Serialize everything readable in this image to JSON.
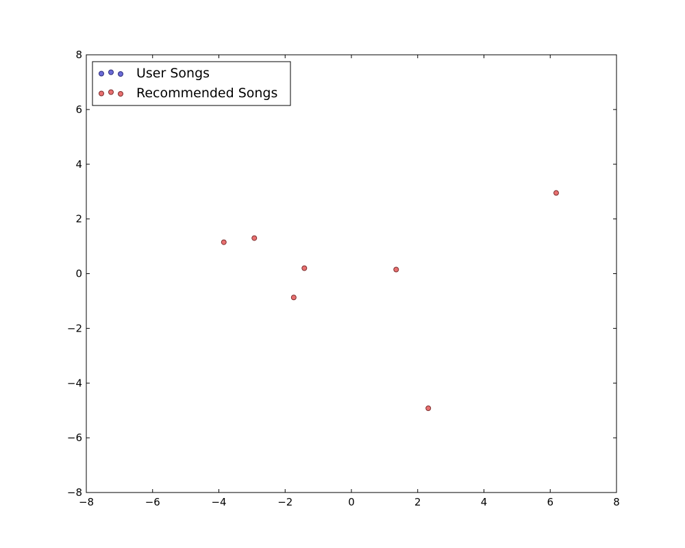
{
  "chart_data": {
    "type": "scatter",
    "title": "",
    "xlabel": "",
    "ylabel": "",
    "xlim": [
      -8,
      8
    ],
    "ylim": [
      -8,
      8
    ],
    "xticks": [
      -8,
      -6,
      -4,
      -2,
      0,
      2,
      4,
      6,
      8
    ],
    "yticks": [
      -8,
      -6,
      -4,
      -2,
      0,
      2,
      4,
      6,
      8
    ],
    "grid": false,
    "legend_position": "upper-left",
    "series": [
      {
        "name": "User Songs",
        "color": "#6b6bd6",
        "edge_color": "#2b2b7a",
        "points": []
      },
      {
        "name": "Recommended Songs",
        "color": "#e87070",
        "edge_color": "#7a2b2b",
        "points": [
          {
            "x": -3.85,
            "y": 1.15
          },
          {
            "x": -2.93,
            "y": 1.3
          },
          {
            "x": -1.42,
            "y": 0.2
          },
          {
            "x": -1.74,
            "y": -0.87
          },
          {
            "x": 1.35,
            "y": 0.15
          },
          {
            "x": 2.32,
            "y": -4.92
          },
          {
            "x": 6.18,
            "y": 2.95
          }
        ]
      }
    ]
  }
}
